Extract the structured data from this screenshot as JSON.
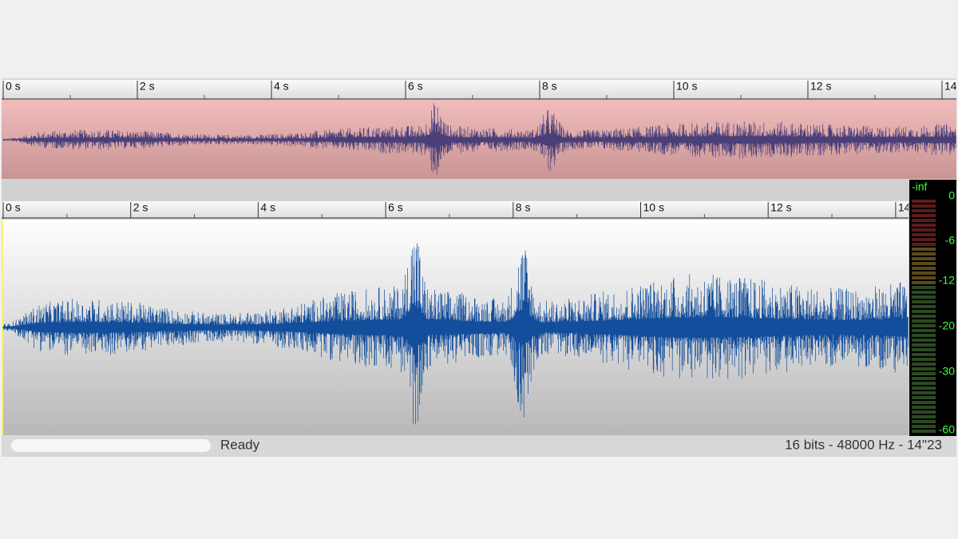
{
  "top_ruler": {
    "labels": [
      "0 s",
      "2 s",
      "4 s",
      "6 s",
      "8 s",
      "10 s",
      "12 s",
      "14"
    ]
  },
  "main_ruler": {
    "labels": [
      "0 s",
      "2 s",
      "4 s",
      "6 s",
      "8 s",
      "10 s",
      "12 s",
      "14"
    ]
  },
  "level_meter": {
    "labels": [
      "-inf",
      "0",
      "-6",
      "-12",
      "-20",
      "-30",
      "-60"
    ]
  },
  "status_bar": {
    "status": "Ready",
    "format": "16 bits - 48000 Hz - 14\"23"
  }
}
